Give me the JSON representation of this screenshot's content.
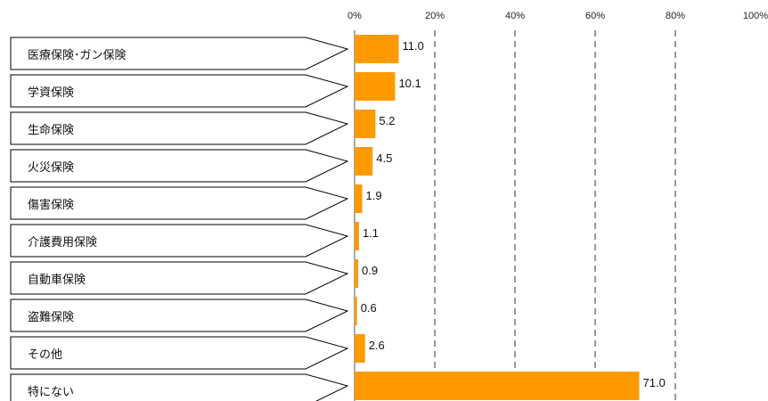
{
  "chart_data": {
    "type": "bar",
    "orientation": "horizontal",
    "categories": [
      "医療保険･ガン保険",
      "学資保険",
      "生命保険",
      "火災保険",
      "傷害保険",
      "介護費用保険",
      "自動車保険",
      "盗難保険",
      "その他",
      "特にない"
    ],
    "values": [
      11.0,
      10.1,
      5.2,
      4.5,
      1.9,
      1.1,
      0.9,
      0.6,
      2.6,
      71.0
    ],
    "value_labels": [
      "11.0",
      "10.1",
      "5.2",
      "4.5",
      "1.9",
      "1.1",
      "0.9",
      "0.6",
      "2.6",
      "71.0"
    ],
    "xlim": [
      0,
      100
    ],
    "x_ticks": [
      0,
      20,
      40,
      60,
      80,
      100
    ],
    "x_tick_labels": [
      "0%",
      "20%",
      "40%",
      "60%",
      "80%",
      "100%"
    ],
    "grid": "vertical dashed",
    "bar_color": "#FF9900",
    "title": "",
    "xlabel": "",
    "ylabel": ""
  }
}
